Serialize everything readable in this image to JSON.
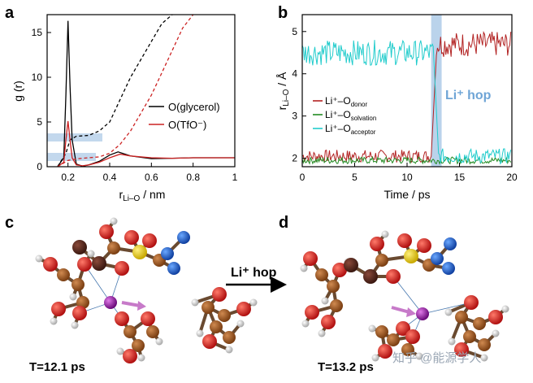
{
  "panels": {
    "a": {
      "letter": "a",
      "xlabel_main": "r",
      "xlabel_sub": "Li–O",
      "xlabel_unit": " / nm",
      "ylabel": "g (r)",
      "xticks": [
        "0.2",
        "0.4",
        "0.6",
        "0.8",
        "1"
      ],
      "yticks": [
        "0",
        "5",
        "10",
        "15"
      ],
      "legend": [
        "O(glycerol)",
        "O(TfO⁻)"
      ]
    },
    "b": {
      "letter": "b",
      "xlabel": "Time / ps",
      "ylabel_main": "r",
      "ylabel_sub": "Li–O",
      "ylabel_unit": " / Å",
      "xticks": [
        "0",
        "5",
        "10",
        "15",
        "20"
      ],
      "yticks": [
        "2",
        "3",
        "4",
        "5"
      ],
      "legend_prefix": "Li⁺–O",
      "legend_subs": [
        "donor",
        "solvation",
        "acceptor"
      ],
      "annotation": "Li⁺ hop"
    },
    "c": {
      "letter": "c",
      "time_label": "T=12.1 ps"
    },
    "d": {
      "letter": "d",
      "time_label": "T=13.2 ps"
    },
    "arrow_label": "Li⁺ hop",
    "watermark": "知乎 @能源学人"
  },
  "colors": {
    "glycerol": "#000000",
    "tfo": "#cc2222",
    "donor": "#b22222",
    "solvation": "#228b22",
    "acceptor": "#22cccc",
    "highlight": "#a9c8e6",
    "li_atom": "#8a1a9a",
    "arrow_pink": "#c77ac9"
  },
  "chart_data": [
    {
      "type": "line",
      "panel": "a",
      "xlabel": "r Li–O / nm",
      "ylabel": "g (r)",
      "xlim": [
        0.1,
        1.0
      ],
      "ylim": [
        0,
        17
      ],
      "series": [
        {
          "name": "O(glycerol) g(r)",
          "style": "solid",
          "x": [
            0.15,
            0.18,
            0.19,
            0.2,
            0.21,
            0.22,
            0.24,
            0.27,
            0.3,
            0.35,
            0.4,
            0.44,
            0.5,
            0.6,
            0.7,
            0.8,
            0.9,
            1.0
          ],
          "y": [
            0,
            1.0,
            8.0,
            16.3,
            9.0,
            3.0,
            0.3,
            0.05,
            0.2,
            0.6,
            1.3,
            1.65,
            1.2,
            0.9,
            0.95,
            1.0,
            1.0,
            1.0
          ]
        },
        {
          "name": "O(glycerol) n(r)",
          "style": "dashed",
          "x": [
            0.15,
            0.19,
            0.21,
            0.24,
            0.3,
            0.35,
            0.4,
            0.45,
            0.5,
            0.55,
            0.6,
            0.65,
            0.7
          ],
          "y": [
            0,
            1.5,
            3.0,
            3.4,
            3.5,
            4.0,
            5.0,
            7.5,
            10.0,
            12.0,
            14.0,
            16.0,
            17.0
          ]
        },
        {
          "name": "O(TfO⁻) g(r)",
          "style": "solid",
          "x": [
            0.15,
            0.18,
            0.19,
            0.2,
            0.21,
            0.22,
            0.24,
            0.27,
            0.3,
            0.35,
            0.4,
            0.45,
            0.5,
            0.6,
            0.7,
            0.8,
            0.9,
            1.0
          ],
          "y": [
            0,
            0.5,
            3.0,
            5.1,
            3.0,
            1.0,
            0.2,
            0.1,
            0.2,
            0.5,
            1.0,
            1.4,
            1.2,
            1.0,
            0.95,
            1.0,
            1.0,
            1.0
          ]
        },
        {
          "name": "O(TfO⁻) n(r)",
          "style": "dashed",
          "x": [
            0.15,
            0.2,
            0.25,
            0.3,
            0.35,
            0.4,
            0.45,
            0.5,
            0.55,
            0.6,
            0.65,
            0.7,
            0.75,
            0.8
          ],
          "y": [
            0,
            0.7,
            0.9,
            1.0,
            1.1,
            1.5,
            2.5,
            4.0,
            6.0,
            8.0,
            10.5,
            13.0,
            15.5,
            17.0
          ]
        }
      ]
    },
    {
      "type": "line",
      "panel": "b",
      "xlabel": "Time / ps",
      "ylabel": "r Li–O / Å",
      "xlim": [
        0,
        20
      ],
      "ylim": [
        1.8,
        5.4
      ],
      "hop_window": [
        12.3,
        13.3
      ],
      "series": [
        {
          "name": "Li⁺–O donor",
          "color_key": "donor",
          "segments": [
            {
              "x0": 0,
              "x1": 12.3,
              "base": 2.05,
              "noise": 0.15
            },
            {
              "x0": 12.8,
              "x1": 20,
              "base": 4.7,
              "noise": 0.3
            }
          ]
        },
        {
          "name": "Li⁺–O solvation",
          "color_key": "solvation",
          "segments": [
            {
              "x0": 0,
              "x1": 20,
              "base": 1.95,
              "noise": 0.08
            }
          ]
        },
        {
          "name": "Li⁺–O acceptor",
          "color_key": "acceptor",
          "segments": [
            {
              "x0": 0,
              "x1": 12.5,
              "base": 4.5,
              "noise": 0.3
            },
            {
              "x0": 13.0,
              "x1": 20,
              "base": 2.05,
              "noise": 0.18
            }
          ]
        }
      ]
    }
  ]
}
